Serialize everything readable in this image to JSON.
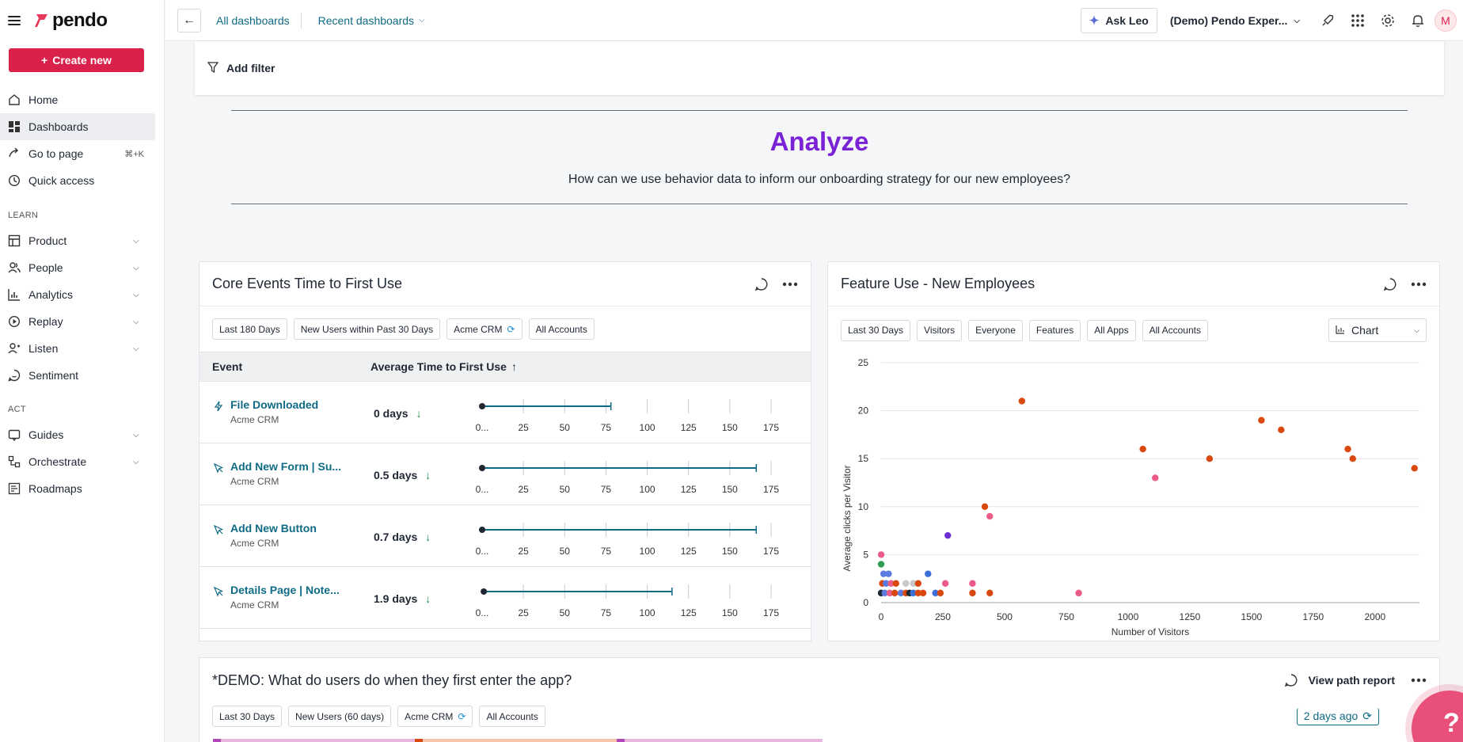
{
  "app": {
    "brand": "pendo",
    "create_label": "Create new"
  },
  "nav": {
    "main": [
      {
        "label": "Home",
        "icon": "home-icon"
      },
      {
        "label": "Dashboards",
        "icon": "dashboard-icon",
        "active": true
      },
      {
        "label": "Go to page",
        "icon": "go-to-icon",
        "shortcut": "⌘+K"
      },
      {
        "label": "Quick access",
        "icon": "clock-icon"
      }
    ],
    "learn_label": "LEARN",
    "learn": [
      {
        "label": "Product",
        "icon": "product-icon"
      },
      {
        "label": "People",
        "icon": "people-icon"
      },
      {
        "label": "Analytics",
        "icon": "analytics-icon"
      },
      {
        "label": "Replay",
        "icon": "replay-icon"
      },
      {
        "label": "Listen",
        "icon": "listen-icon"
      },
      {
        "label": "Sentiment",
        "icon": "sentiment-icon"
      }
    ],
    "act_label": "ACT",
    "act": [
      {
        "label": "Guides",
        "icon": "guides-icon"
      },
      {
        "label": "Orchestrate",
        "icon": "orchestrate-icon"
      },
      {
        "label": "Roadmaps",
        "icon": "roadmaps-icon"
      }
    ]
  },
  "topbar": {
    "crumb_all": "All dashboards",
    "crumb_recent": "Recent dashboards",
    "ask_leo": "Ask Leo",
    "workspace": "(Demo) Pendo Exper...",
    "avatar": "M"
  },
  "filter": {
    "add_filter": "Add filter"
  },
  "analyze": {
    "title": "Analyze",
    "subtitle": "How can we use behavior data to inform our onboarding strategy for our new employees?"
  },
  "core_events": {
    "title": "Core Events Time to First Use",
    "chips": [
      "Last 180 Days",
      "New Users within Past 30 Days",
      "Acme CRM",
      "All Accounts"
    ],
    "col_event": "Event",
    "col_avg": "Average Time to First Use",
    "tick_labels": [
      "0...",
      "25",
      "50",
      "75",
      "100",
      "125",
      "150",
      "175"
    ],
    "rows": [
      {
        "name": "File Downloaded",
        "app": "Acme CRM",
        "avg": "0 days",
        "icon": "lightning-icon",
        "range": [
          0,
          78
        ]
      },
      {
        "name": "Add New Form | Su...",
        "app": "Acme CRM",
        "avg": "0.5 days",
        "icon": "cursor-icon",
        "range": [
          0,
          166
        ]
      },
      {
        "name": "Add New Button",
        "app": "Acme CRM",
        "avg": "0.7 days",
        "icon": "cursor-icon",
        "range": [
          0,
          166
        ]
      },
      {
        "name": "Details Page | Note...",
        "app": "Acme CRM",
        "avg": "1.9 days",
        "icon": "cursor-icon",
        "range": [
          1,
          115
        ]
      }
    ]
  },
  "feature_use": {
    "title": "Feature Use - New Employees",
    "chips": [
      "Last 30 Days",
      "Visitors",
      "Everyone",
      "Features",
      "All Apps",
      "All Accounts"
    ],
    "view_select": "Chart"
  },
  "chart_data": {
    "type": "scatter",
    "xlabel": "Number of Visitors",
    "ylabel": "Average clicks per Visitor",
    "xlim": [
      0,
      2180
    ],
    "ylim": [
      0,
      25
    ],
    "xticks": [
      0,
      250,
      500,
      750,
      1000,
      1250,
      1500,
      1750,
      2000
    ],
    "yticks": [
      0,
      5,
      10,
      15,
      20,
      25
    ],
    "grid": true,
    "points": [
      {
        "x": 570,
        "y": 21,
        "color": "#d9480f"
      },
      {
        "x": 1060,
        "y": 16,
        "color": "#d9480f"
      },
      {
        "x": 1540,
        "y": 19,
        "color": "#d9480f"
      },
      {
        "x": 1620,
        "y": 18,
        "color": "#d9480f"
      },
      {
        "x": 1330,
        "y": 15,
        "color": "#d9480f"
      },
      {
        "x": 1890,
        "y": 16,
        "color": "#d9480f"
      },
      {
        "x": 1910,
        "y": 15,
        "color": "#d9480f"
      },
      {
        "x": 2160,
        "y": 14,
        "color": "#d9480f"
      },
      {
        "x": 1110,
        "y": 13,
        "color": "#ec5b87"
      },
      {
        "x": 420,
        "y": 10,
        "color": "#d9480f"
      },
      {
        "x": 440,
        "y": 9,
        "color": "#ec5b87"
      },
      {
        "x": 270,
        "y": 7,
        "color": "#6b2fd1"
      },
      {
        "x": 0,
        "y": 5,
        "color": "#ec5b87"
      },
      {
        "x": 0,
        "y": 4,
        "color": "#2e9e52"
      },
      {
        "x": 10,
        "y": 3,
        "color": "#5b7be0"
      },
      {
        "x": 30,
        "y": 3,
        "color": "#5b7be0"
      },
      {
        "x": 190,
        "y": 3,
        "color": "#3b6fd8"
      },
      {
        "x": 5,
        "y": 2,
        "color": "#d9480f"
      },
      {
        "x": 20,
        "y": 2,
        "color": "#5b7be0"
      },
      {
        "x": 40,
        "y": 2,
        "color": "#ec5b87"
      },
      {
        "x": 60,
        "y": 2,
        "color": "#d9480f"
      },
      {
        "x": 100,
        "y": 2,
        "color": "#c8c8c8"
      },
      {
        "x": 130,
        "y": 2,
        "color": "#c8c8c8"
      },
      {
        "x": 150,
        "y": 2,
        "color": "#d9480f"
      },
      {
        "x": 260,
        "y": 2,
        "color": "#ec5b87"
      },
      {
        "x": 370,
        "y": 2,
        "color": "#ec5b87"
      },
      {
        "x": 0,
        "y": 1,
        "color": "#1f2733"
      },
      {
        "x": 15,
        "y": 1,
        "color": "#5b7be0"
      },
      {
        "x": 35,
        "y": 1,
        "color": "#ec5b87"
      },
      {
        "x": 55,
        "y": 1,
        "color": "#d9480f"
      },
      {
        "x": 80,
        "y": 1,
        "color": "#5b7be0"
      },
      {
        "x": 100,
        "y": 1,
        "color": "#d9480f"
      },
      {
        "x": 115,
        "y": 1,
        "color": "#1f2733"
      },
      {
        "x": 130,
        "y": 1,
        "color": "#3b6fd8"
      },
      {
        "x": 150,
        "y": 1,
        "color": "#d9480f"
      },
      {
        "x": 170,
        "y": 1,
        "color": "#d9480f"
      },
      {
        "x": 220,
        "y": 1,
        "color": "#3b6fd8"
      },
      {
        "x": 240,
        "y": 1,
        "color": "#d9480f"
      },
      {
        "x": 370,
        "y": 1,
        "color": "#d9480f"
      },
      {
        "x": 440,
        "y": 1,
        "color": "#d9480f"
      },
      {
        "x": 800,
        "y": 1,
        "color": "#ec5b87"
      }
    ]
  },
  "demo_card": {
    "title": "*DEMO: What do users do when they first enter the app?",
    "view_path": "View path report",
    "chips": [
      "Last 30 Days",
      "New Users (60 days)",
      "Acme CRM",
      "All Accounts"
    ],
    "updated": "2 days ago"
  },
  "help": {
    "label": "?"
  }
}
